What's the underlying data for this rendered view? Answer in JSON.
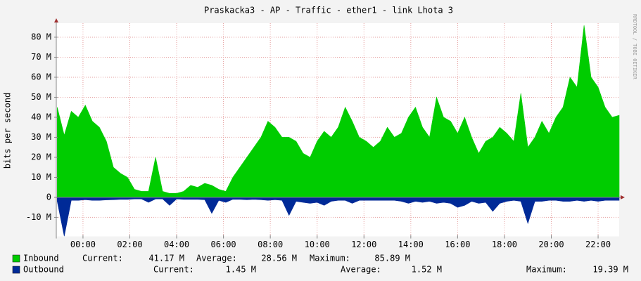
{
  "chart_data": {
    "type": "area",
    "title": "Praskacka3 - AP - Traffic - ether1 - link Lhota 3",
    "ylabel": "bits per second",
    "watermark": "RRDTOOL / TOBI OETIKER",
    "x": [
      -1.1,
      -0.8,
      -0.5,
      -0.2,
      0.1,
      0.4,
      0.7,
      1.0,
      1.3,
      1.6,
      1.9,
      2.2,
      2.5,
      2.8,
      3.1,
      3.4,
      3.7,
      4.0,
      4.3,
      4.6,
      4.9,
      5.2,
      5.5,
      5.8,
      6.1,
      6.4,
      6.7,
      7.0,
      7.3,
      7.6,
      7.9,
      8.2,
      8.5,
      8.8,
      9.1,
      9.4,
      9.7,
      10.0,
      10.3,
      10.6,
      10.9,
      11.2,
      11.5,
      11.8,
      12.1,
      12.4,
      12.7,
      13.0,
      13.3,
      13.6,
      13.9,
      14.2,
      14.5,
      14.8,
      15.1,
      15.4,
      15.7,
      16.0,
      16.3,
      16.6,
      16.9,
      17.2,
      17.5,
      17.8,
      18.1,
      18.4,
      18.7,
      19.0,
      19.3,
      19.6,
      19.9,
      20.2,
      20.5,
      20.8,
      21.1,
      21.4,
      21.7,
      22.0,
      22.3,
      22.6,
      22.9
    ],
    "xlim": [
      -1.14,
      22.9
    ],
    "xticks": [
      {
        "value": 0,
        "label": "00:00"
      },
      {
        "value": 2,
        "label": "02:00"
      },
      {
        "value": 4,
        "label": "04:00"
      },
      {
        "value": 6,
        "label": "06:00"
      },
      {
        "value": 8,
        "label": "08:00"
      },
      {
        "value": 10,
        "label": "10:00"
      },
      {
        "value": 12,
        "label": "12:00"
      },
      {
        "value": 14,
        "label": "14:00"
      },
      {
        "value": 16,
        "label": "16:00"
      },
      {
        "value": 18,
        "label": "18:00"
      },
      {
        "value": 20,
        "label": "20:00"
      },
      {
        "value": 22,
        "label": "22:00"
      }
    ],
    "ylim": [
      -19.5,
      87
    ],
    "yticks": [
      {
        "value": -10,
        "label": "-10 M"
      },
      0,
      {
        "value": 10,
        "label": "10 M"
      },
      {
        "value": 20,
        "label": "20 M"
      },
      {
        "value": 30,
        "label": "30 M"
      },
      {
        "value": 40,
        "label": "40 M"
      },
      {
        "value": 50,
        "label": "50 M"
      },
      {
        "value": 60,
        "label": "60 M"
      },
      {
        "value": 70,
        "label": "70 M"
      },
      {
        "value": 80,
        "label": "80 M"
      }
    ],
    "grid": true,
    "series": [
      {
        "name": "Inbound",
        "color": "#00cc00",
        "values": [
          45,
          31,
          43,
          40,
          46,
          38,
          35,
          28,
          15,
          12,
          10,
          4,
          3,
          3,
          20,
          3,
          2,
          2,
          3,
          6,
          5,
          7,
          6,
          4,
          3,
          10,
          15,
          20,
          25,
          30,
          38,
          35,
          30,
          30,
          28,
          22,
          20,
          28,
          33,
          30,
          35,
          45,
          38,
          30,
          28,
          25,
          28,
          35,
          30,
          32,
          40,
          45,
          35,
          30,
          50,
          40,
          38,
          32,
          40,
          30,
          22,
          28,
          30,
          35,
          32,
          28,
          52,
          25,
          30,
          38,
          32,
          40,
          45,
          60,
          55,
          85.89,
          60,
          55,
          45,
          40,
          41
        ],
        "stats": [
          {
            "label": "Current:",
            "value": "41.17 M"
          },
          {
            "label": "Average:",
            "value": "28.56 M"
          },
          {
            "label": "Maximum:",
            "value": "85.89 M"
          }
        ]
      },
      {
        "name": "Outbound",
        "color": "#002a97",
        "values": [
          -2,
          -19.4,
          -1.5,
          -1.5,
          -1.2,
          -1.5,
          -1.5,
          -1.3,
          -1.2,
          -1,
          -1,
          -0.8,
          -0.8,
          -2.5,
          -0.8,
          -0.8,
          -4,
          -0.8,
          -1,
          -1,
          -1,
          -1.2,
          -8,
          -1.5,
          -2.5,
          -1,
          -1,
          -1.2,
          -1,
          -1.2,
          -1.5,
          -1.2,
          -1.5,
          -9,
          -2,
          -2.5,
          -3,
          -2.5,
          -4,
          -2,
          -1.5,
          -1.5,
          -3,
          -1.5,
          -1.5,
          -1.5,
          -1.5,
          -1.5,
          -1.5,
          -2,
          -3,
          -2,
          -2.5,
          -2,
          -3,
          -2.5,
          -3,
          -5,
          -4,
          -2,
          -3,
          -2.5,
          -7,
          -3,
          -2,
          -1.5,
          -2,
          -13,
          -2,
          -2,
          -1.5,
          -1.5,
          -2,
          -2,
          -1.5,
          -2,
          -1.5,
          -2,
          -1.5,
          -1.5,
          -1.5
        ],
        "stats": [
          {
            "label": "Current:",
            "value": "1.45 M"
          },
          {
            "label": "Average:",
            "value": "1.52 M"
          },
          {
            "label": "Maximum:",
            "value": "19.39 M"
          }
        ]
      }
    ]
  }
}
